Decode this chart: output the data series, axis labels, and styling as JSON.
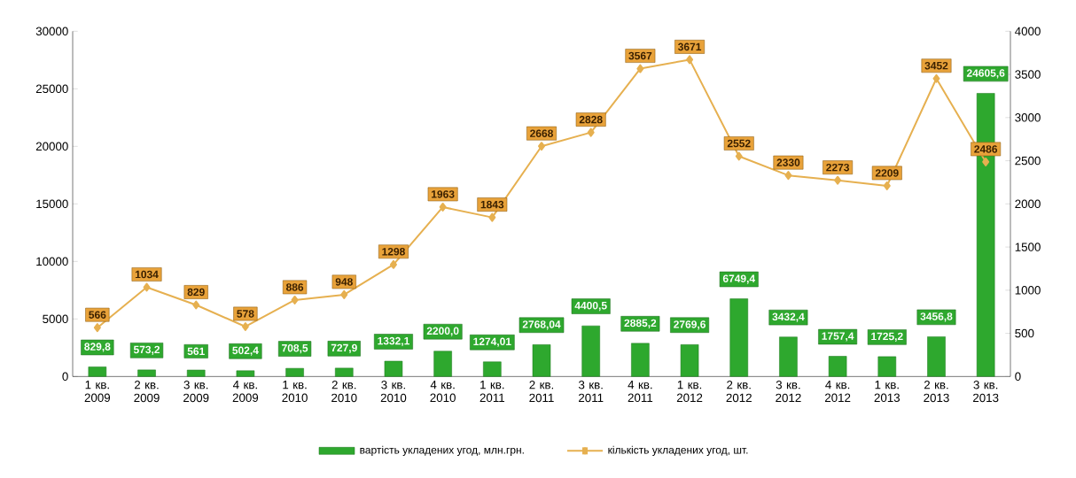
{
  "chart_data": {
    "type": "bar",
    "categories": [
      "1 кв. 2009",
      "2 кв. 2009",
      "3 кв. 2009",
      "4 кв. 2009",
      "1 кв. 2010",
      "2 кв. 2010",
      "3 кв. 2010",
      "4 кв. 2010",
      "1 кв. 2011",
      "2 кв. 2011",
      "3 кв. 2011",
      "4 кв. 2011",
      "1 кв. 2012",
      "2 кв. 2012",
      "3 кв. 2012",
      "4 кв. 2012",
      "1 кв. 2013",
      "2 кв. 2013",
      "3 кв. 2013"
    ],
    "series": [
      {
        "name": "вартість укладених угод, млн.грн.",
        "axis": "y",
        "color": "#2ea82e",
        "values": [
          829.8,
          573.2,
          561,
          502.4,
          708.5,
          727.9,
          1332.1,
          2200.0,
          1274.01,
          2768.04,
          4400.5,
          2885.2,
          2769.6,
          6749.4,
          3432.4,
          1757.4,
          1725.2,
          3456.8,
          24605.6
        ],
        "value_labels": [
          "829,8",
          "573,2",
          "561",
          "502,4",
          "708,5",
          "727,9",
          "1332,1",
          "2200,0",
          "1274,01",
          "2768,04",
          "4400,5",
          "2885,2",
          "2769,6",
          "6749,4",
          "3432,4",
          "1757,4",
          "1725,2",
          "3456,8",
          "24605,6"
        ]
      },
      {
        "name": "кількість укладених угод, шт.",
        "type": "line",
        "axis": "y2",
        "color": "#e6b050",
        "values": [
          566,
          1034,
          829,
          578,
          886,
          948,
          1298,
          1963,
          1843,
          2668,
          2828,
          3567,
          3671,
          2552,
          2330,
          2273,
          2209,
          3452,
          2486
        ]
      }
    ],
    "data_labels": true,
    "marker": "diamond",
    "legend": "bottom",
    "ylim": [
      0,
      30000
    ],
    "yticks": [
      0,
      5000,
      10000,
      15000,
      20000,
      25000,
      30000
    ],
    "y2lim": [
      0,
      4000
    ],
    "y2ticks": [
      0,
      500,
      1000,
      1500,
      2000,
      2500,
      3000,
      3500,
      4000
    ]
  }
}
